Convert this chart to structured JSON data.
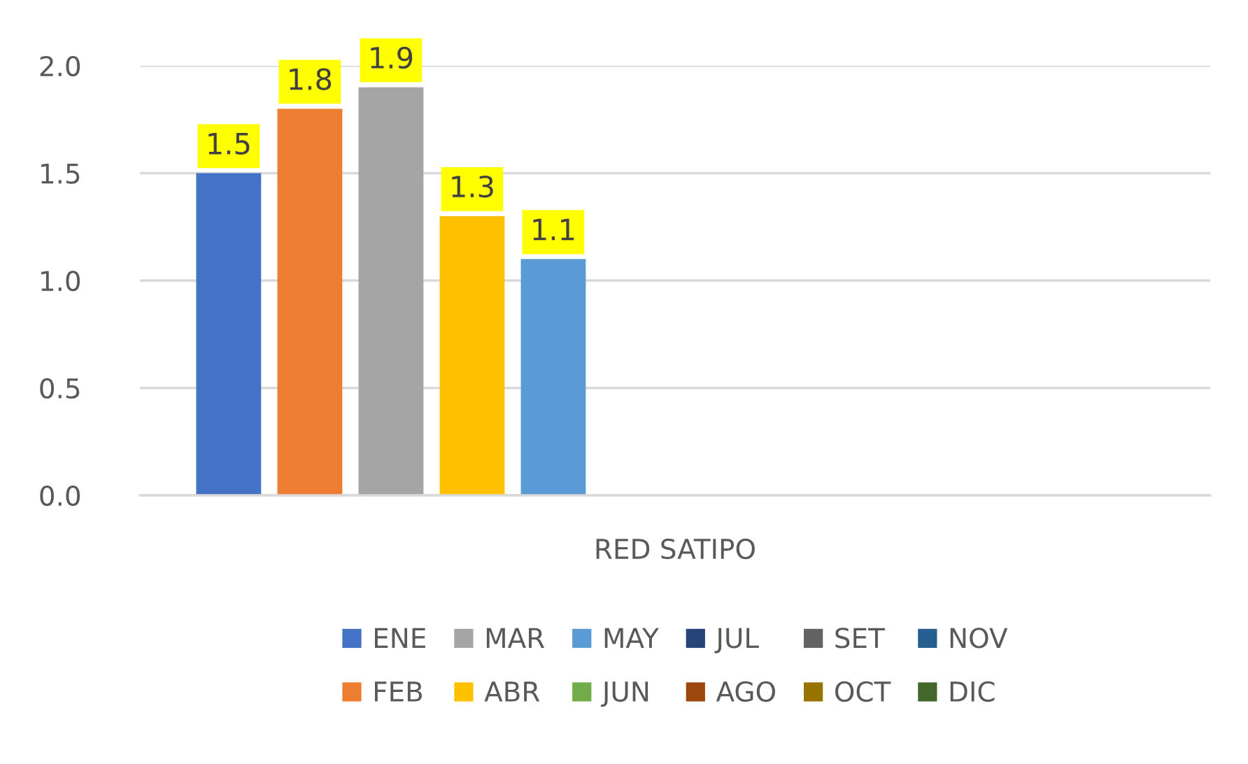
{
  "chart_data": {
    "type": "bar",
    "categories": [
      "RED SATIPO"
    ],
    "series": [
      {
        "name": "ENE",
        "color": "#4472c4",
        "values": [
          1.5
        ]
      },
      {
        "name": "FEB",
        "color": "#ed7d31",
        "values": [
          1.8
        ]
      },
      {
        "name": "MAR",
        "color": "#a5a5a5",
        "values": [
          1.9
        ]
      },
      {
        "name": "ABR",
        "color": "#ffc000",
        "values": [
          1.3
        ]
      },
      {
        "name": "MAY",
        "color": "#5b9bd5",
        "values": [
          1.1
        ]
      },
      {
        "name": "JUN",
        "color": "#70ad47",
        "values": [
          null
        ]
      },
      {
        "name": "JUL",
        "color": "#264478",
        "values": [
          null
        ]
      },
      {
        "name": "AGO",
        "color": "#9e480e",
        "values": [
          null
        ]
      },
      {
        "name": "SET",
        "color": "#636363",
        "values": [
          null
        ]
      },
      {
        "name": "OCT",
        "color": "#997300",
        "values": [
          null
        ]
      },
      {
        "name": "NOV",
        "color": "#255e91",
        "values": [
          null
        ]
      },
      {
        "name": "DIC",
        "color": "#43682b",
        "values": [
          null
        ]
      }
    ],
    "ylim": [
      0,
      2.0
    ],
    "yticks": [
      {
        "value": 0,
        "label": "0.0"
      },
      {
        "value": 0.5,
        "label": "0.5"
      },
      {
        "value": 1.0,
        "label": "1.0"
      },
      {
        "value": 1.5,
        "label": "1.5"
      },
      {
        "value": 2.0,
        "label": "2.0"
      }
    ],
    "grid": "y",
    "legend": "bottom",
    "data_labels": true
  }
}
